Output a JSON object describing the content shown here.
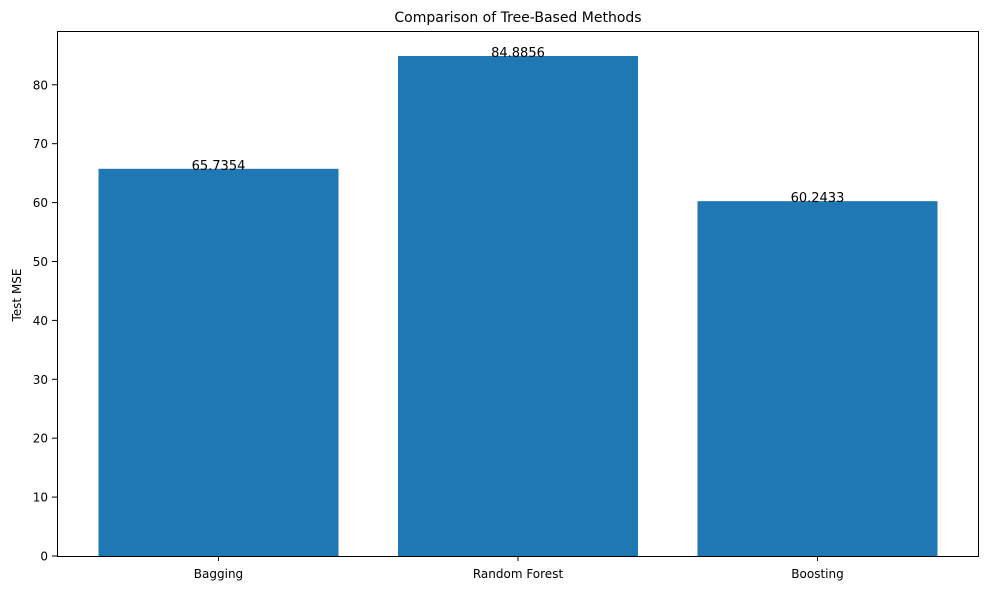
{
  "chart_data": {
    "type": "bar",
    "title": "Comparison of Tree-Based Methods",
    "xlabel": "",
    "ylabel": "Test MSE",
    "categories": [
      "Bagging",
      "Random Forest",
      "Boosting"
    ],
    "values": [
      65.7354,
      84.8856,
      60.2433
    ],
    "value_labels": [
      "65.7354",
      "84.8856",
      "60.2433"
    ],
    "ylim": [
      0,
      89.13
    ],
    "yticks": [
      0,
      10,
      20,
      30,
      40,
      50,
      60,
      70,
      80
    ],
    "grid": false,
    "legend": "none",
    "bar_color": "#1f77b4"
  }
}
